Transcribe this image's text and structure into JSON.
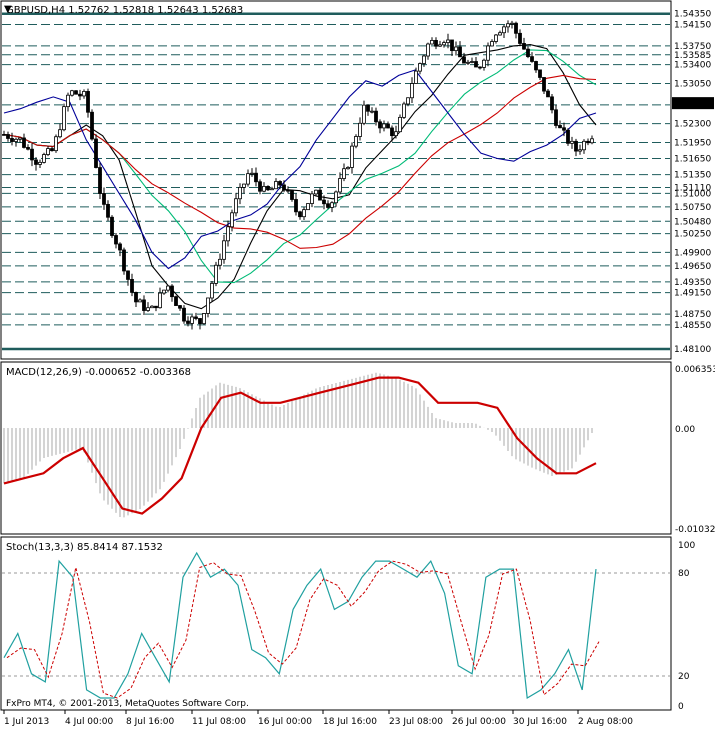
{
  "header": {
    "symbol_info": "GBPUSD,H4  1.52762 1.52818 1.52643 1.52683"
  },
  "colors": {
    "grid": "#1f5c5c",
    "candle": "#000000",
    "ma_black": "#000000",
    "ma_red": "#cc0000",
    "ma_blue": "#000099",
    "ma_green": "#00bb77",
    "macd_hist": "#aaaaaa",
    "macd_signal": "#cc0000",
    "stoch_main": "#20a0a0",
    "stoch_signal": "#cc0000"
  },
  "price_panel": {
    "price_levels": [
      "1.54350",
      "1.54150",
      "1.53750",
      "1.53585",
      "1.53400",
      "1.53050",
      "1.52650",
      "1.52300",
      "1.51950",
      "1.51650",
      "1.51350",
      "1.51110",
      "1.51000",
      "1.50750",
      "1.50480",
      "1.50250",
      "1.49900",
      "1.49650",
      "1.49350",
      "1.49150",
      "1.48750",
      "1.48550",
      "1.48100"
    ],
    "current_price": "1.52683",
    "ylim": [
      1.4795,
      1.5455
    ]
  },
  "macd_panel": {
    "label": "MACD(12,26,9) -0.000652 -0.003368",
    "axis_labels": [
      "0.006353",
      "0.00",
      "-0.010328"
    ],
    "ylim": [
      -0.010328,
      0.006353
    ]
  },
  "stoch_panel": {
    "label": "Stoch(13,3,3) 85.8414 87.1532",
    "axis_labels": [
      "100",
      "80",
      "20",
      "0"
    ],
    "ylim": [
      0,
      100
    ]
  },
  "copyright": "FxPro MT4, © 2001-2013, MetaQuotes Software Corp.",
  "time_axis": [
    "1 Jul 2013",
    "4 Jul 00:00",
    "8 Jul 16:00",
    "11 Jul 08:00",
    "16 Jul 00:00",
    "18 Jul 16:00",
    "23 Jul 08:00",
    "26 Jul 00:00",
    "30 Jul 16:00",
    "2 Aug 08:00"
  ],
  "chart_data": {
    "type": "line",
    "x": [
      0,
      4,
      8,
      12,
      16,
      20,
      24,
      28,
      32,
      36,
      40,
      44,
      48,
      52,
      56,
      60,
      64,
      68,
      72,
      76,
      80,
      84,
      88,
      92,
      96,
      100,
      104,
      108,
      112,
      116,
      120,
      124,
      128,
      132,
      136,
      140,
      144
    ],
    "series": [
      {
        "values": [
          1.521,
          1.52,
          1.516,
          1.518,
          1.529,
          1.528,
          1.508,
          1.5,
          1.49,
          1.488,
          1.493,
          1.487,
          1.486,
          1.496,
          1.507,
          1.514,
          1.51,
          1.512,
          1.506,
          1.51,
          1.508,
          1.515,
          1.526,
          1.523,
          1.521,
          1.531,
          1.538,
          1.539,
          1.535,
          1.533,
          1.54,
          1.542,
          1.536,
          1.53,
          1.522,
          1.518,
          1.521
        ]
      },
      {
        "values": [
          1.525,
          1.5258,
          1.527,
          1.528,
          1.527,
          1.52,
          1.515,
          1.51,
          1.505,
          1.499,
          1.496,
          1.498,
          1.502,
          1.503,
          1.505,
          1.506,
          1.508,
          1.512,
          1.515,
          1.52,
          1.524,
          1.528,
          1.531,
          1.53,
          1.532,
          1.533,
          1.529,
          1.525,
          1.521,
          1.5175,
          1.5165,
          1.516,
          1.5178,
          1.519,
          1.521,
          1.524,
          1.525
        ]
      }
    ]
  }
}
